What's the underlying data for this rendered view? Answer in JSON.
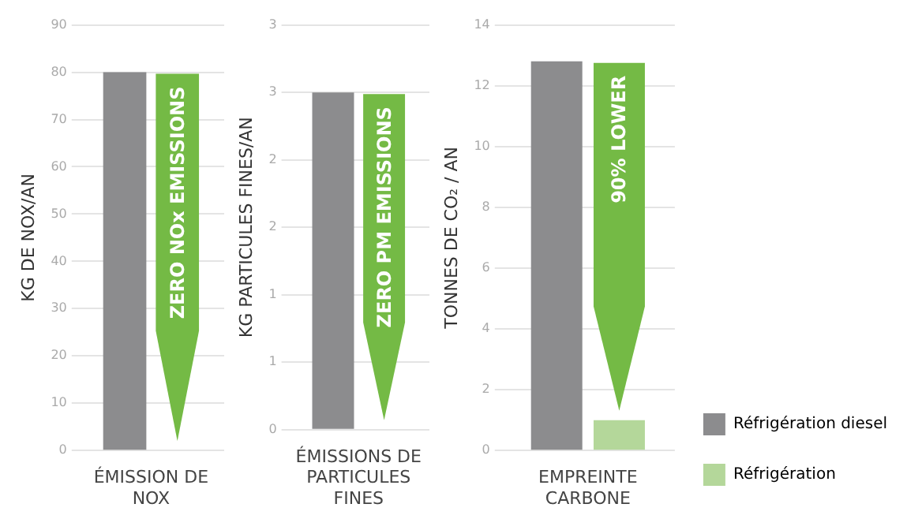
{
  "chart_data": [
    {
      "type": "bar",
      "categories": [
        "ÉMISSION DE NOX"
      ],
      "ylabel": "KG DE NOX/AN",
      "ylim": [
        0,
        90
      ],
      "yticks": [
        0,
        10,
        20,
        30,
        40,
        50,
        60,
        70,
        80,
        90
      ],
      "grid": "y",
      "annotations": [
        "ZERO NOx EMISSIONS"
      ],
      "series": [
        {
          "color": "#8c8c8e",
          "values": [
            80
          ]
        },
        {
          "color": "#6aad3d",
          "values": [
            0
          ]
        }
      ]
    },
    {
      "type": "bar",
      "categories": [
        "ÉMISSIONS DE PARTICULES FINES"
      ],
      "ylabel": "KG PARTICULES FINES/AN",
      "ylim": [
        0,
        3
      ],
      "yticks": [
        0,
        {
          "value": 0.5,
          "label": "1"
        },
        1,
        {
          "value": 1.5,
          "label": "2"
        },
        2,
        {
          "value": 2.5,
          "label": "3"
        },
        3
      ],
      "grid": "y",
      "annotations": [
        "ZERO PM EMISSIONS"
      ],
      "series": [
        {
          "color": "#8c8c8e",
          "values": [
            2.5
          ]
        },
        {
          "color": "#6aad3d",
          "values": [
            0
          ]
        }
      ]
    },
    {
      "type": "bar",
      "categories": [
        "EMPREINTE CARBONE"
      ],
      "ylabel": "TONNES DE CO₂ / AN",
      "ylim": [
        0,
        14
      ],
      "yticks": [
        0,
        2,
        4,
        6,
        8,
        10,
        12,
        14
      ],
      "grid": "y",
      "legend": "right",
      "annotations": [
        "90% LOWER"
      ],
      "series": [
        {
          "name": "Réfrigération diesel",
          "color": "#8c8c8e",
          "values": [
            12.8
          ]
        },
        {
          "name": "Réfrigération",
          "color": "#b4d79a",
          "values": [
            1.0
          ]
        }
      ]
    }
  ]
}
